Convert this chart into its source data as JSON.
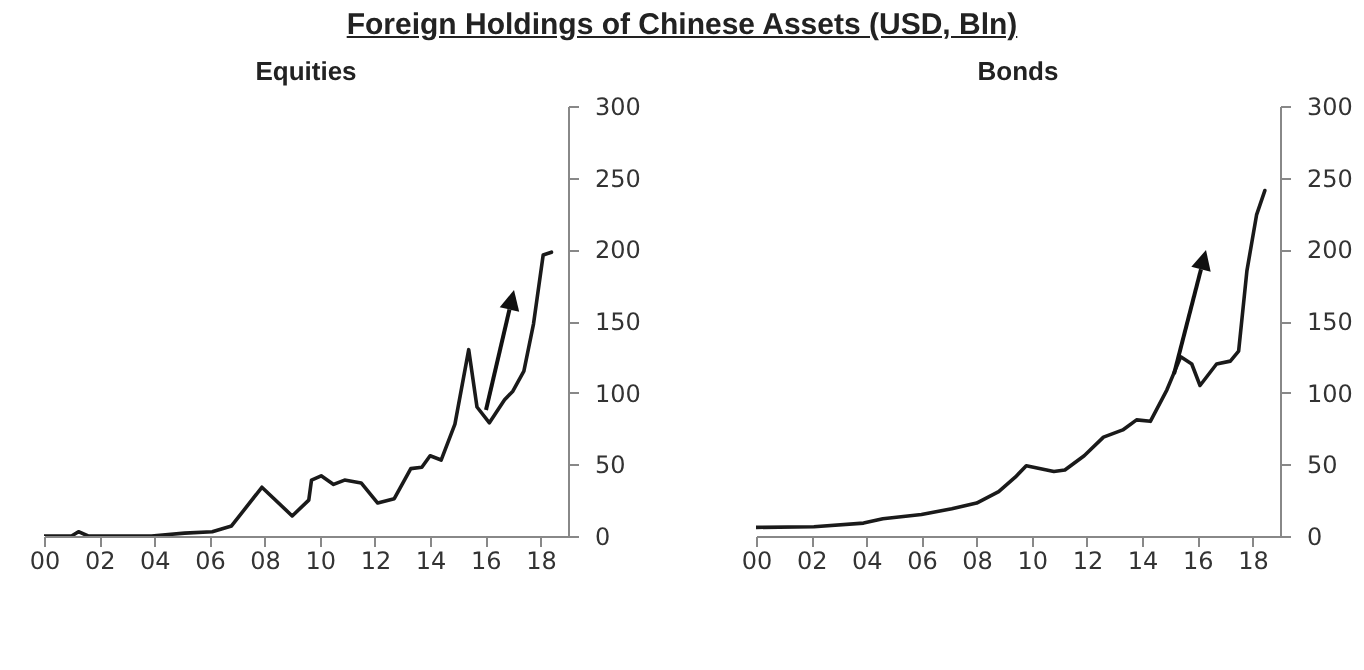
{
  "chart_data": [
    {
      "type": "other",
      "title": "Foreign Holdings of Chinese Assets (USD, Bln)"
    },
    {
      "type": "line",
      "title": "Equities",
      "xlim": [
        2000,
        2019
      ],
      "ylim": [
        0,
        300
      ],
      "xticks": [
        {
          "value": 2000,
          "label": "00"
        },
        {
          "value": 2002,
          "label": "02"
        },
        {
          "value": 2004,
          "label": "04"
        },
        {
          "value": 2006,
          "label": "06"
        },
        {
          "value": 2008,
          "label": "08"
        },
        {
          "value": 2010,
          "label": "10"
        },
        {
          "value": 2012,
          "label": "12"
        },
        {
          "value": 2014,
          "label": "14"
        },
        {
          "value": 2016,
          "label": "16"
        },
        {
          "value": 2018,
          "label": "18"
        }
      ],
      "yticks": [
        0,
        50,
        100,
        150,
        200,
        250,
        300
      ],
      "line_style": "solid",
      "series": [
        {
          "color": "#1a1a1a",
          "x": [
            2000,
            2001,
            2001.25,
            2001.6,
            2003.9,
            2005.1,
            2006.1,
            2006.8,
            2007.9,
            2009.0,
            2009.6,
            2009.7,
            2010.05,
            2010.5,
            2010.9,
            2011.5,
            2012.1,
            2012.7,
            2013.3,
            2013.7,
            2014.0,
            2014.4,
            2014.9,
            2015.4,
            2015.7,
            2016.15,
            2016.7,
            2017.0,
            2017.4,
            2017.75,
            2018.1,
            2018.4
          ],
          "values": [
            0,
            0,
            3,
            0,
            0,
            2,
            3,
            7,
            34,
            14,
            25,
            39,
            42,
            36,
            39,
            37,
            23,
            26,
            47,
            48,
            56,
            53,
            78,
            130,
            90,
            79,
            95,
            101,
            115,
            148,
            196,
            198
          ]
        }
      ]
    },
    {
      "type": "line",
      "title": "Bonds",
      "xlim": [
        2000,
        2019
      ],
      "ylim": [
        0,
        300
      ],
      "xticks": [
        {
          "value": 2000,
          "label": "00"
        },
        {
          "value": 2002,
          "label": "02"
        },
        {
          "value": 2004,
          "label": "04"
        },
        {
          "value": 2006,
          "label": "06"
        },
        {
          "value": 2008,
          "label": "08"
        },
        {
          "value": 2010,
          "label": "10"
        },
        {
          "value": 2012,
          "label": "12"
        },
        {
          "value": 2014,
          "label": "14"
        },
        {
          "value": 2016,
          "label": "16"
        },
        {
          "value": 2018,
          "label": "18"
        }
      ],
      "yticks": [
        0,
        50,
        100,
        150,
        200,
        250,
        300
      ],
      "line_style": "solid",
      "series": [
        {
          "color": "#1a1a1a",
          "x": [
            2000,
            2002.1,
            2003.9,
            2004.6,
            2006,
            2007.1,
            2008,
            2008.8,
            2009.4,
            2009.8,
            2010.8,
            2011.2,
            2011.9,
            2012.6,
            2013.3,
            2013.8,
            2014.3,
            2014.9,
            2015.4,
            2015.8,
            2016.1,
            2016.7,
            2017.2,
            2017.5,
            2017.8,
            2018.15,
            2018.45
          ],
          "values": [
            6,
            6.5,
            9,
            12,
            15,
            19,
            23,
            31,
            41,
            49,
            45,
            46,
            56,
            69,
            74,
            81,
            80,
            102,
            125,
            120,
            105,
            120,
            122,
            129,
            185,
            224,
            241
          ]
        }
      ]
    }
  ]
}
